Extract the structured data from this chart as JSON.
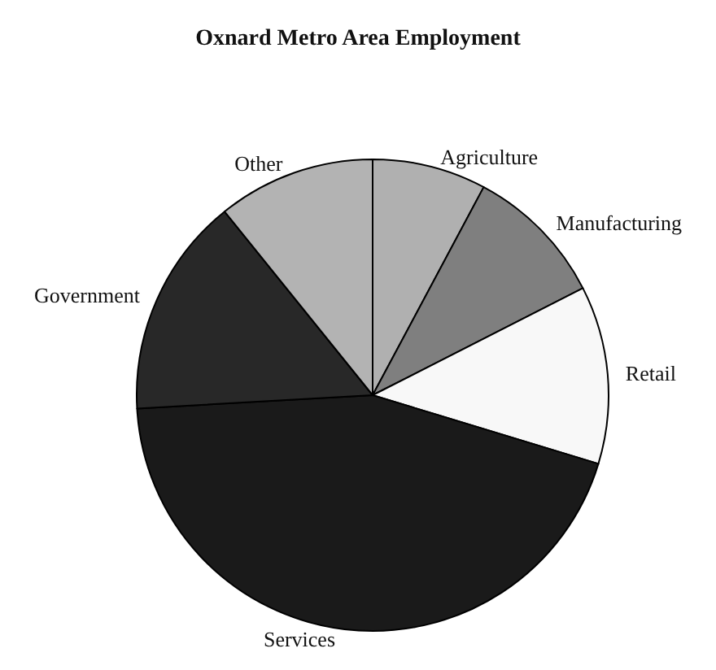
{
  "chart_data": {
    "type": "pie",
    "title": "Oxnard Metro Area Employment",
    "categories": [
      "Agriculture",
      "Manufacturing",
      "Retail",
      "Services",
      "Government",
      "Other"
    ],
    "values": [
      7.8,
      9.7,
      12.2,
      44.4,
      15.1,
      10.8
    ],
    "colors": [
      "#b0b0b0",
      "#7f7f7f",
      "#f8f8f8",
      "#1a1a1a",
      "#282828",
      "#b3b3b3"
    ],
    "legend": false
  }
}
